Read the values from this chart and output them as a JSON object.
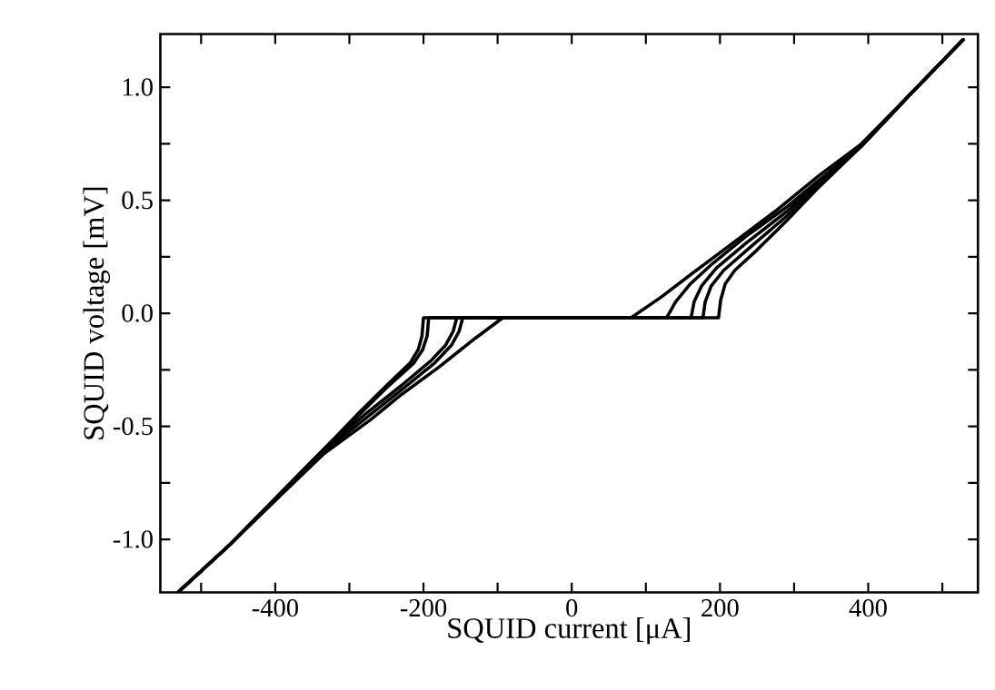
{
  "chart_data": {
    "type": "line",
    "xlabel": "SQUID current [μA]",
    "ylabel": "SQUID voltage [mV]",
    "xlim": [
      -555,
      548
    ],
    "ylim": [
      -1.235,
      1.235
    ],
    "xticks": [
      {
        "value": -500,
        "label": null
      },
      -400,
      {
        "value": -300,
        "label": null
      },
      -200,
      {
        "value": -100,
        "label": null
      },
      0,
      {
        "value": 100,
        "label": null
      },
      200,
      {
        "value": 300,
        "label": null
      },
      400,
      {
        "value": 500,
        "label": null
      }
    ],
    "yticks": [
      {
        "value": -1,
        "label": "-1.0"
      },
      {
        "value": -0.75,
        "label": null
      },
      -0.5,
      {
        "value": -0.25,
        "label": null
      },
      {
        "value": 0,
        "label": "0.0"
      },
      {
        "value": 0.25,
        "label": null
      },
      0.5,
      {
        "value": 0.75,
        "label": null
      },
      {
        "value": 1,
        "label": "1.0"
      }
    ],
    "series": [
      {
        "color": "#000000",
        "x": [
          -531,
          -460,
          -391,
          -334,
          -290,
          -250,
          -218,
          -207,
          -202,
          -200,
          198,
          201,
          207,
          220,
          250,
          290,
          334,
          391,
          460,
          528
        ],
        "values": [
          -1.234,
          -1.02,
          -0.79,
          -0.6,
          -0.45,
          -0.32,
          -0.22,
          -0.16,
          -0.1,
          -0.02,
          -0.02,
          0.06,
          0.13,
          0.19,
          0.28,
          0.41,
          0.56,
          0.74,
          0.98,
          1.21
        ]
      },
      {
        "color": "#000000",
        "x": [
          -531,
          -460,
          -391,
          -334,
          -290,
          -250,
          -213,
          -201,
          -195,
          -193,
          177,
          180,
          188,
          205,
          240,
          290,
          334,
          391,
          460,
          528
        ],
        "values": [
          -1.234,
          -1.02,
          -0.79,
          -0.6,
          -0.46,
          -0.33,
          -0.22,
          -0.16,
          -0.1,
          -0.02,
          -0.02,
          0.05,
          0.12,
          0.19,
          0.29,
          0.43,
          0.57,
          0.74,
          0.98,
          1.21
        ]
      },
      {
        "color": "#000000",
        "x": [
          -531,
          -460,
          -391,
          -334,
          -280,
          -230,
          -190,
          -170,
          -160,
          -155,
          161,
          165,
          175,
          195,
          235,
          290,
          334,
          391,
          460,
          528
        ],
        "values": [
          -1.234,
          -1.02,
          -0.79,
          -0.6,
          -0.45,
          -0.32,
          -0.21,
          -0.14,
          -0.08,
          -0.02,
          -0.02,
          0.05,
          0.12,
          0.2,
          0.31,
          0.45,
          0.58,
          0.74,
          0.98,
          1.21
        ]
      },
      {
        "color": "#000000",
        "x": [
          -531,
          -460,
          -391,
          -334,
          -280,
          -230,
          -185,
          -162,
          -152,
          -147,
          128,
          140,
          160,
          190,
          235,
          290,
          334,
          391,
          460,
          528
        ],
        "values": [
          -1.234,
          -1.02,
          -0.79,
          -0.61,
          -0.47,
          -0.34,
          -0.22,
          -0.14,
          -0.08,
          -0.02,
          -0.02,
          0.05,
          0.13,
          0.22,
          0.34,
          0.47,
          0.59,
          0.74,
          0.98,
          1.21
        ]
      },
      {
        "color": "#000000",
        "x": [
          -531,
          -460,
          -391,
          -334,
          -271,
          -230,
          -180,
          -130,
          -93,
          80,
          120,
          160,
          213,
          274,
          334,
          391,
          460,
          528
        ],
        "values": [
          -1.234,
          -1.02,
          -0.8,
          -0.62,
          -0.47,
          -0.36,
          -0.24,
          -0.11,
          -0.02,
          -0.02,
          0.07,
          0.17,
          0.3,
          0.45,
          0.61,
          0.75,
          0.98,
          1.21
        ]
      }
    ]
  }
}
